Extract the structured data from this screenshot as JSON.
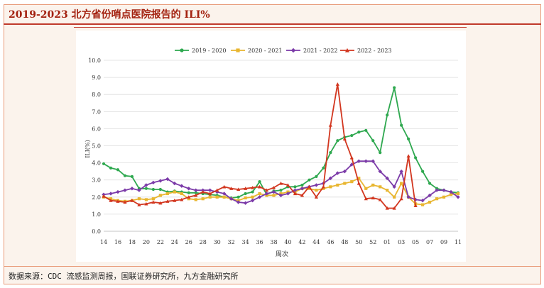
{
  "title": "2019-2023 北方省份哨点医院报告的 ILI%",
  "source": "数据来源：CDC 流感监测周报，国联证券研究所，九方金融研究所",
  "chart_data": {
    "type": "line",
    "ylabel": "ILI(%)",
    "xlabel": "周次",
    "ylim": [
      0,
      10
    ],
    "yticks": [
      "0.0",
      "1.0",
      "2.0",
      "3.0",
      "4.0",
      "5.0",
      "6.0",
      "7.0",
      "8.0",
      "9.0",
      "10.0"
    ],
    "xtick_labels": [
      "14",
      "16",
      "18",
      "20",
      "22",
      "24",
      "26",
      "28",
      "30",
      "32",
      "34",
      "36",
      "38",
      "40",
      "42",
      "44",
      "46",
      "48",
      "50",
      "52",
      "01",
      "03",
      "05",
      "07",
      "09",
      "11"
    ],
    "legend_position": "top",
    "series": [
      {
        "name": "2019 - 2020",
        "color": "#2ea84f",
        "marker": "circle",
        "values": [
          3.95,
          3.7,
          3.6,
          3.25,
          3.2,
          2.5,
          2.5,
          2.45,
          2.45,
          2.3,
          2.35,
          2.3,
          2.25,
          2.25,
          2.2,
          2.15,
          2.1,
          2.0,
          1.95,
          2.0,
          2.2,
          2.3,
          2.9,
          2.15,
          2.35,
          2.4,
          2.6,
          2.6,
          2.7,
          3.0,
          3.2,
          3.7,
          4.6,
          5.3,
          5.5,
          5.6,
          5.8,
          5.9,
          5.3,
          4.6,
          6.8,
          8.4,
          6.2,
          5.4,
          4.3,
          3.5,
          2.8,
          2.5,
          2.4,
          2.3,
          2.25
        ]
      },
      {
        "name": "2020 - 2021",
        "color": "#e8b630",
        "marker": "square",
        "values": [
          2.0,
          1.9,
          1.8,
          1.75,
          1.8,
          1.9,
          1.85,
          1.9,
          2.1,
          2.2,
          2.3,
          2.2,
          1.9,
          1.85,
          1.9,
          2.0,
          2.0,
          2.0,
          1.9,
          1.8,
          1.95,
          2.0,
          2.2,
          2.1,
          2.1,
          2.2,
          2.3,
          2.3,
          2.5,
          2.5,
          2.4,
          2.5,
          2.6,
          2.7,
          2.8,
          2.9,
          3.1,
          2.5,
          2.7,
          2.6,
          2.4,
          2.0,
          2.8,
          2.0,
          1.6,
          1.55,
          1.7,
          1.9,
          2.0,
          2.15,
          2.2
        ]
      },
      {
        "name": "2021 - 2022",
        "color": "#7b3aa8",
        "marker": "diamond",
        "values": [
          2.15,
          2.2,
          2.3,
          2.4,
          2.5,
          2.4,
          2.7,
          2.85,
          2.95,
          3.05,
          2.8,
          2.65,
          2.5,
          2.4,
          2.4,
          2.4,
          2.3,
          2.2,
          1.9,
          1.7,
          1.65,
          1.8,
          2.0,
          2.2,
          2.3,
          2.1,
          2.2,
          2.4,
          2.5,
          2.6,
          2.7,
          2.8,
          3.1,
          3.4,
          3.5,
          3.9,
          4.1,
          4.1,
          4.1,
          3.5,
          3.1,
          2.6,
          3.5,
          2.0,
          1.85,
          1.8,
          2.1,
          2.4,
          2.4,
          2.3,
          2.0
        ]
      },
      {
        "name": "2022 - 2023",
        "color": "#d2361f",
        "marker": "triangle",
        "values": [
          2.05,
          1.8,
          1.75,
          1.7,
          1.8,
          1.55,
          1.6,
          1.7,
          1.65,
          1.75,
          1.8,
          1.85,
          2.0,
          2.1,
          2.3,
          2.2,
          2.4,
          2.6,
          2.5,
          2.45,
          2.5,
          2.55,
          2.6,
          2.4,
          2.55,
          2.8,
          2.7,
          2.2,
          2.1,
          2.6,
          2.0,
          2.6,
          6.2,
          8.6,
          5.4,
          4.3,
          2.8,
          1.9,
          1.95,
          1.85,
          1.35,
          1.35,
          1.9,
          4.4,
          1.5
        ]
      }
    ]
  }
}
